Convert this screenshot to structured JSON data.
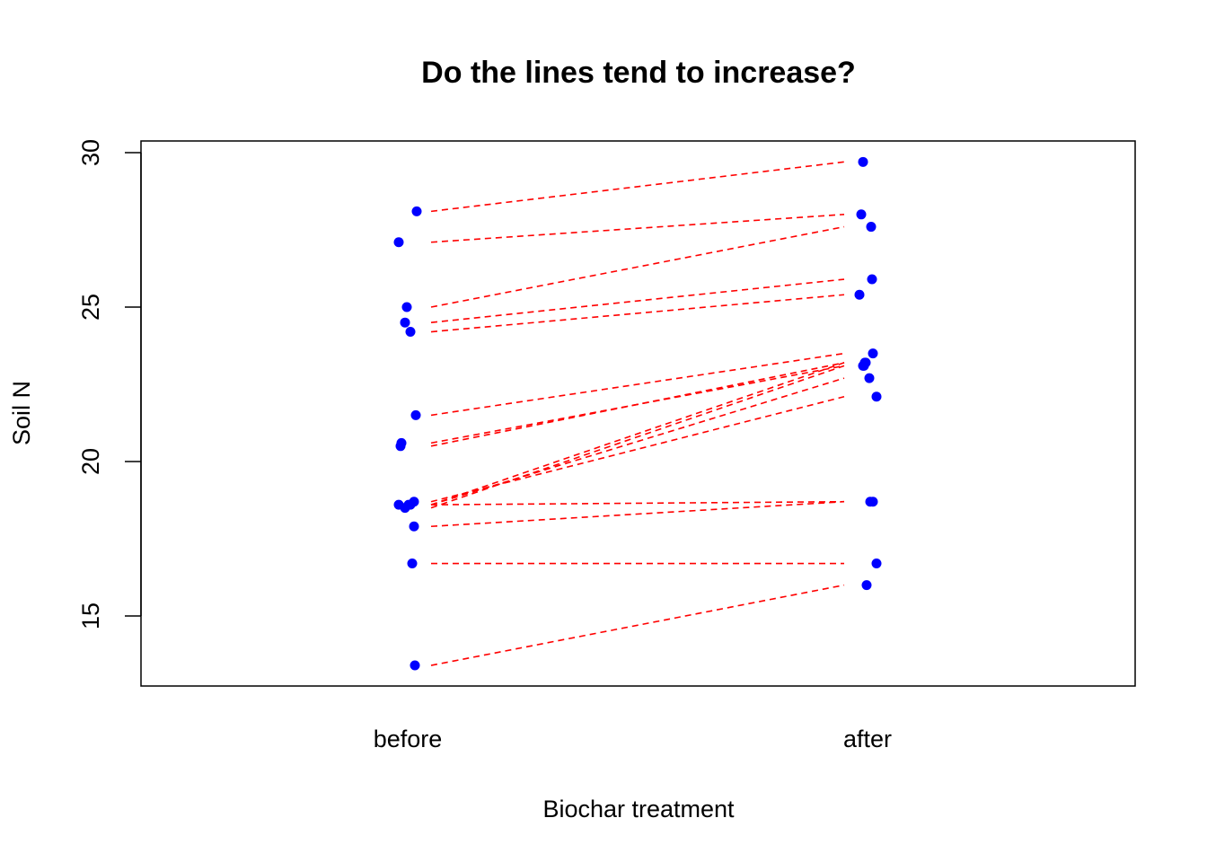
{
  "chart_data": {
    "type": "scatter",
    "title": "Do the lines tend to increase?",
    "xlabel": "Biochar treatment",
    "ylabel": "Soil N",
    "categories": [
      "before",
      "after"
    ],
    "yticks": [
      15,
      20,
      25,
      30
    ],
    "ylim": [
      13.2,
      30.4
    ],
    "point_color": "#0000ff",
    "line_color": "#ff0000",
    "line_style": "dashed",
    "pairs": [
      {
        "before": 28.1,
        "after": 29.7
      },
      {
        "before": 27.1,
        "after": 28.0
      },
      {
        "before": 25.0,
        "after": 27.6
      },
      {
        "before": 24.5,
        "after": 25.9
      },
      {
        "before": 24.2,
        "after": 25.4
      },
      {
        "before": 21.5,
        "after": 23.5
      },
      {
        "before": 20.5,
        "after": 23.2
      },
      {
        "before": 20.6,
        "after": 23.1
      },
      {
        "before": 18.6,
        "after": 23.2
      },
      {
        "before": 18.5,
        "after": 23.1
      },
      {
        "before": 18.6,
        "after": 22.7
      },
      {
        "before": 18.7,
        "after": 22.1
      },
      {
        "before": 18.6,
        "after": 18.7
      },
      {
        "before": 17.9,
        "after": 18.7
      },
      {
        "before": 16.7,
        "after": 16.7
      },
      {
        "before": 13.4,
        "after": 16.0
      }
    ]
  }
}
